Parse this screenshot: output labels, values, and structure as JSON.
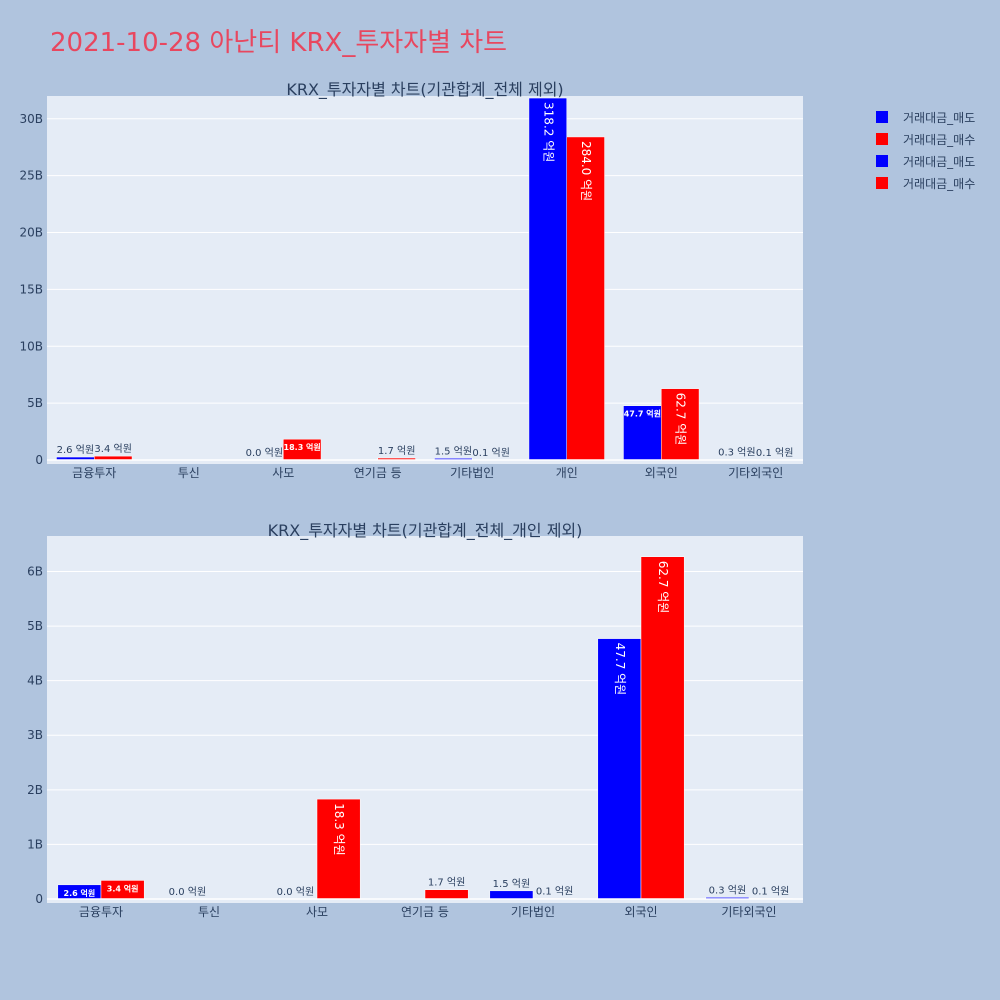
{
  "title": "2021-10-28 아난티 KRX_투자자별 차트",
  "colors": {
    "sell": "#0000ff",
    "buy": "#ff0000",
    "plot_bg": "#e5ecf6",
    "page_bg": "#b0c4de",
    "title": "#e8475f"
  },
  "legend": [
    "거래대금_매도",
    "거래대금_매수",
    "거래대금_매도",
    "거래대금_매수"
  ],
  "chart_data": [
    {
      "type": "bar",
      "title": "KRX_투자자별 차트(기관합계_전체 제외)",
      "categories": [
        "금융투자",
        "투신",
        "사모",
        "연기금 등",
        "기타법인",
        "개인",
        "외국인",
        "기타외국인"
      ],
      "ylim": [
        0,
        32
      ],
      "yticks": [
        0,
        5,
        10,
        15,
        20,
        25,
        30
      ],
      "ytick_labels": [
        "0",
        "5B",
        "10B",
        "15B",
        "20B",
        "25B",
        "30B"
      ],
      "grid": true,
      "series": [
        {
          "name": "거래대금_매도",
          "values": [
            0.26,
            0,
            0.0,
            0,
            0.15,
            31.82,
            4.77,
            0.03
          ],
          "labels": [
            "2.6 억원",
            "",
            "0.0 억원",
            "",
            "1.5 억원",
            "318.2 억원",
            "47.7 억원",
            "0.3 억원"
          ]
        },
        {
          "name": "거래대금_매수",
          "values": [
            0.34,
            0,
            1.83,
            0.17,
            0.01,
            28.4,
            6.27,
            0.01
          ],
          "labels": [
            "3.4 억원",
            "",
            "18.3 억원",
            "1.7 억원",
            "0.1 억원",
            "284.0 억원",
            "62.7 억원",
            "0.1 억원"
          ]
        }
      ]
    },
    {
      "type": "bar",
      "title": "KRX_투자자별 차트(기관합계_전체_개인 제외)",
      "categories": [
        "금융투자",
        "투신",
        "사모",
        "연기금 등",
        "기타법인",
        "외국인",
        "기타외국인"
      ],
      "ylim": [
        0,
        6.65
      ],
      "yticks": [
        0,
        1,
        2,
        3,
        4,
        5,
        6
      ],
      "ytick_labels": [
        "0",
        "1B",
        "2B",
        "3B",
        "4B",
        "5B",
        "6B"
      ],
      "grid": true,
      "series": [
        {
          "name": "거래대금_매도",
          "values": [
            0.26,
            0.0,
            0.0,
            0,
            0.15,
            4.77,
            0.03
          ],
          "labels": [
            "2.6 억원",
            "0.0 억원",
            "0.0 억원",
            "",
            "1.5 억원",
            "47.7 억원",
            "0.3 억원"
          ]
        },
        {
          "name": "거래대금_매수",
          "values": [
            0.34,
            0,
            1.83,
            0.17,
            0.01,
            6.27,
            0.01
          ],
          "labels": [
            "3.4 억원",
            "",
            "18.3 억원",
            "1.7 억원",
            "0.1 억원",
            "62.7 억원",
            "0.1 억원"
          ]
        }
      ]
    }
  ]
}
